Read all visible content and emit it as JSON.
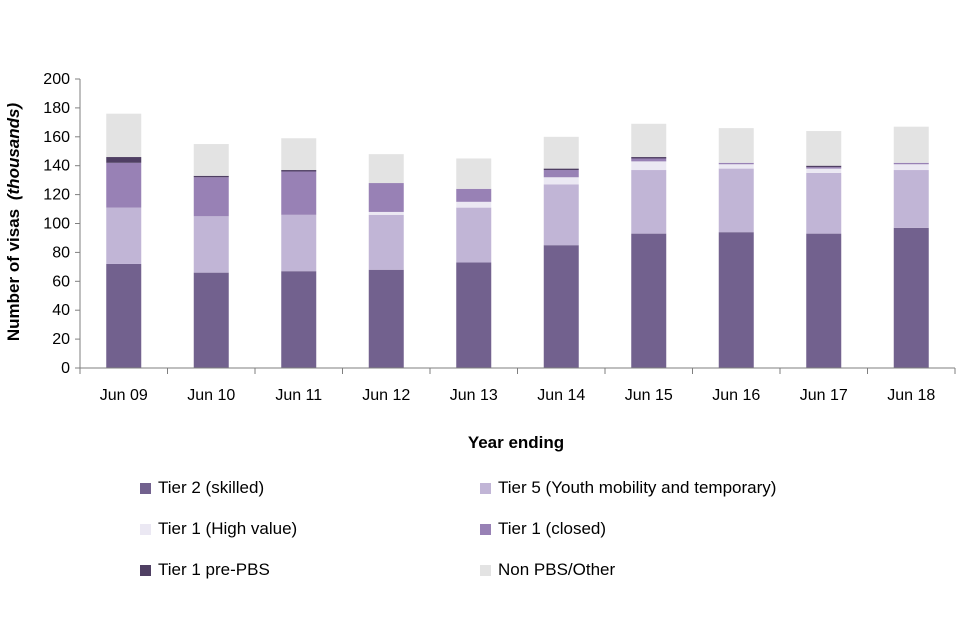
{
  "chart_data": {
    "type": "bar",
    "stacked": true,
    "title": "",
    "xlabel": "Year ending",
    "ylabel": "Number of visas",
    "ylabel_unit": "(thousands)",
    "ylim": [
      0,
      200
    ],
    "yticks": [
      0,
      20,
      40,
      60,
      80,
      100,
      120,
      140,
      160,
      180,
      200
    ],
    "grid": false,
    "legend_position": "bottom",
    "categories": [
      "Jun 09",
      "Jun 10",
      "Jun 11",
      "Jun 12",
      "Jun 13",
      "Jun 14",
      "Jun 15",
      "Jun 16",
      "Jun 17",
      "Jun 18"
    ],
    "series": [
      {
        "name": "Tier 2 (skilled)",
        "color": "#72618e",
        "values": [
          72,
          66,
          67,
          68,
          73,
          85,
          93,
          94,
          93,
          97
        ]
      },
      {
        "name": "Tier 5 (Youth mobility and temporary)",
        "color": "#c1b5d6",
        "values": [
          39,
          39,
          39,
          38,
          38,
          42,
          44,
          44,
          42,
          40
        ]
      },
      {
        "name": "Tier 1 (High value)",
        "color": "#ebe8f3",
        "values": [
          0,
          0,
          0,
          2,
          4,
          5,
          6,
          3,
          3,
          4
        ]
      },
      {
        "name": "Tier 1 (closed)",
        "color": "#9881b5",
        "values": [
          31,
          27,
          30,
          20,
          9,
          5,
          2,
          1,
          1,
          1
        ]
      },
      {
        "name": "Tier 1 pre-PBS",
        "color": "#4f3f63",
        "values": [
          4,
          1,
          1,
          0,
          0,
          1,
          1,
          0,
          1,
          0
        ]
      },
      {
        "name": "Non PBS/Other",
        "color": "#e3e3e3",
        "values": [
          30,
          22,
          22,
          20,
          21,
          22,
          23,
          24,
          24,
          25
        ]
      }
    ]
  }
}
